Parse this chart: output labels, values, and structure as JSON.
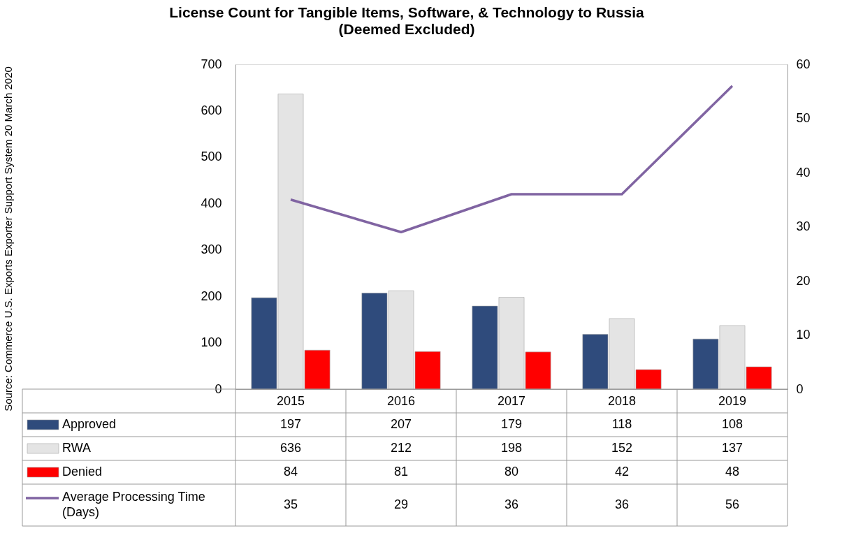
{
  "chart_data": {
    "type": "bar",
    "title": "License Count for Tangible Items, Software, & Technology to Russia",
    "subtitle": "(Deemed Excluded)",
    "categories": [
      "2015",
      "2016",
      "2017",
      "2018",
      "2019"
    ],
    "series": [
      {
        "name": "Approved",
        "color": "#2f4b7c",
        "values": [
          197,
          207,
          179,
          118,
          108
        ]
      },
      {
        "name": "RWA",
        "color": "#e4e4e4",
        "values": [
          636,
          212,
          198,
          152,
          137
        ]
      },
      {
        "name": "Denied",
        "color": "#ff0000",
        "values": [
          84,
          81,
          80,
          42,
          48
        ]
      },
      {
        "name": "Average Processing Time (Days)",
        "type": "line",
        "axis": "y2",
        "color": "#8064a2",
        "values": [
          35,
          29,
          36,
          36,
          56
        ]
      }
    ],
    "ylim": [
      0,
      700
    ],
    "yticks": [
      0,
      100,
      200,
      300,
      400,
      500,
      600,
      700
    ],
    "y2lim": [
      0,
      60
    ],
    "y2ticks": [
      0,
      10,
      20,
      30,
      40,
      50,
      60
    ],
    "data_labels": true,
    "legend": "bottom",
    "grid": false,
    "annotations": [
      "Source: Commerce U.S. Exports Exporter Support System 20 March 2020"
    ]
  }
}
